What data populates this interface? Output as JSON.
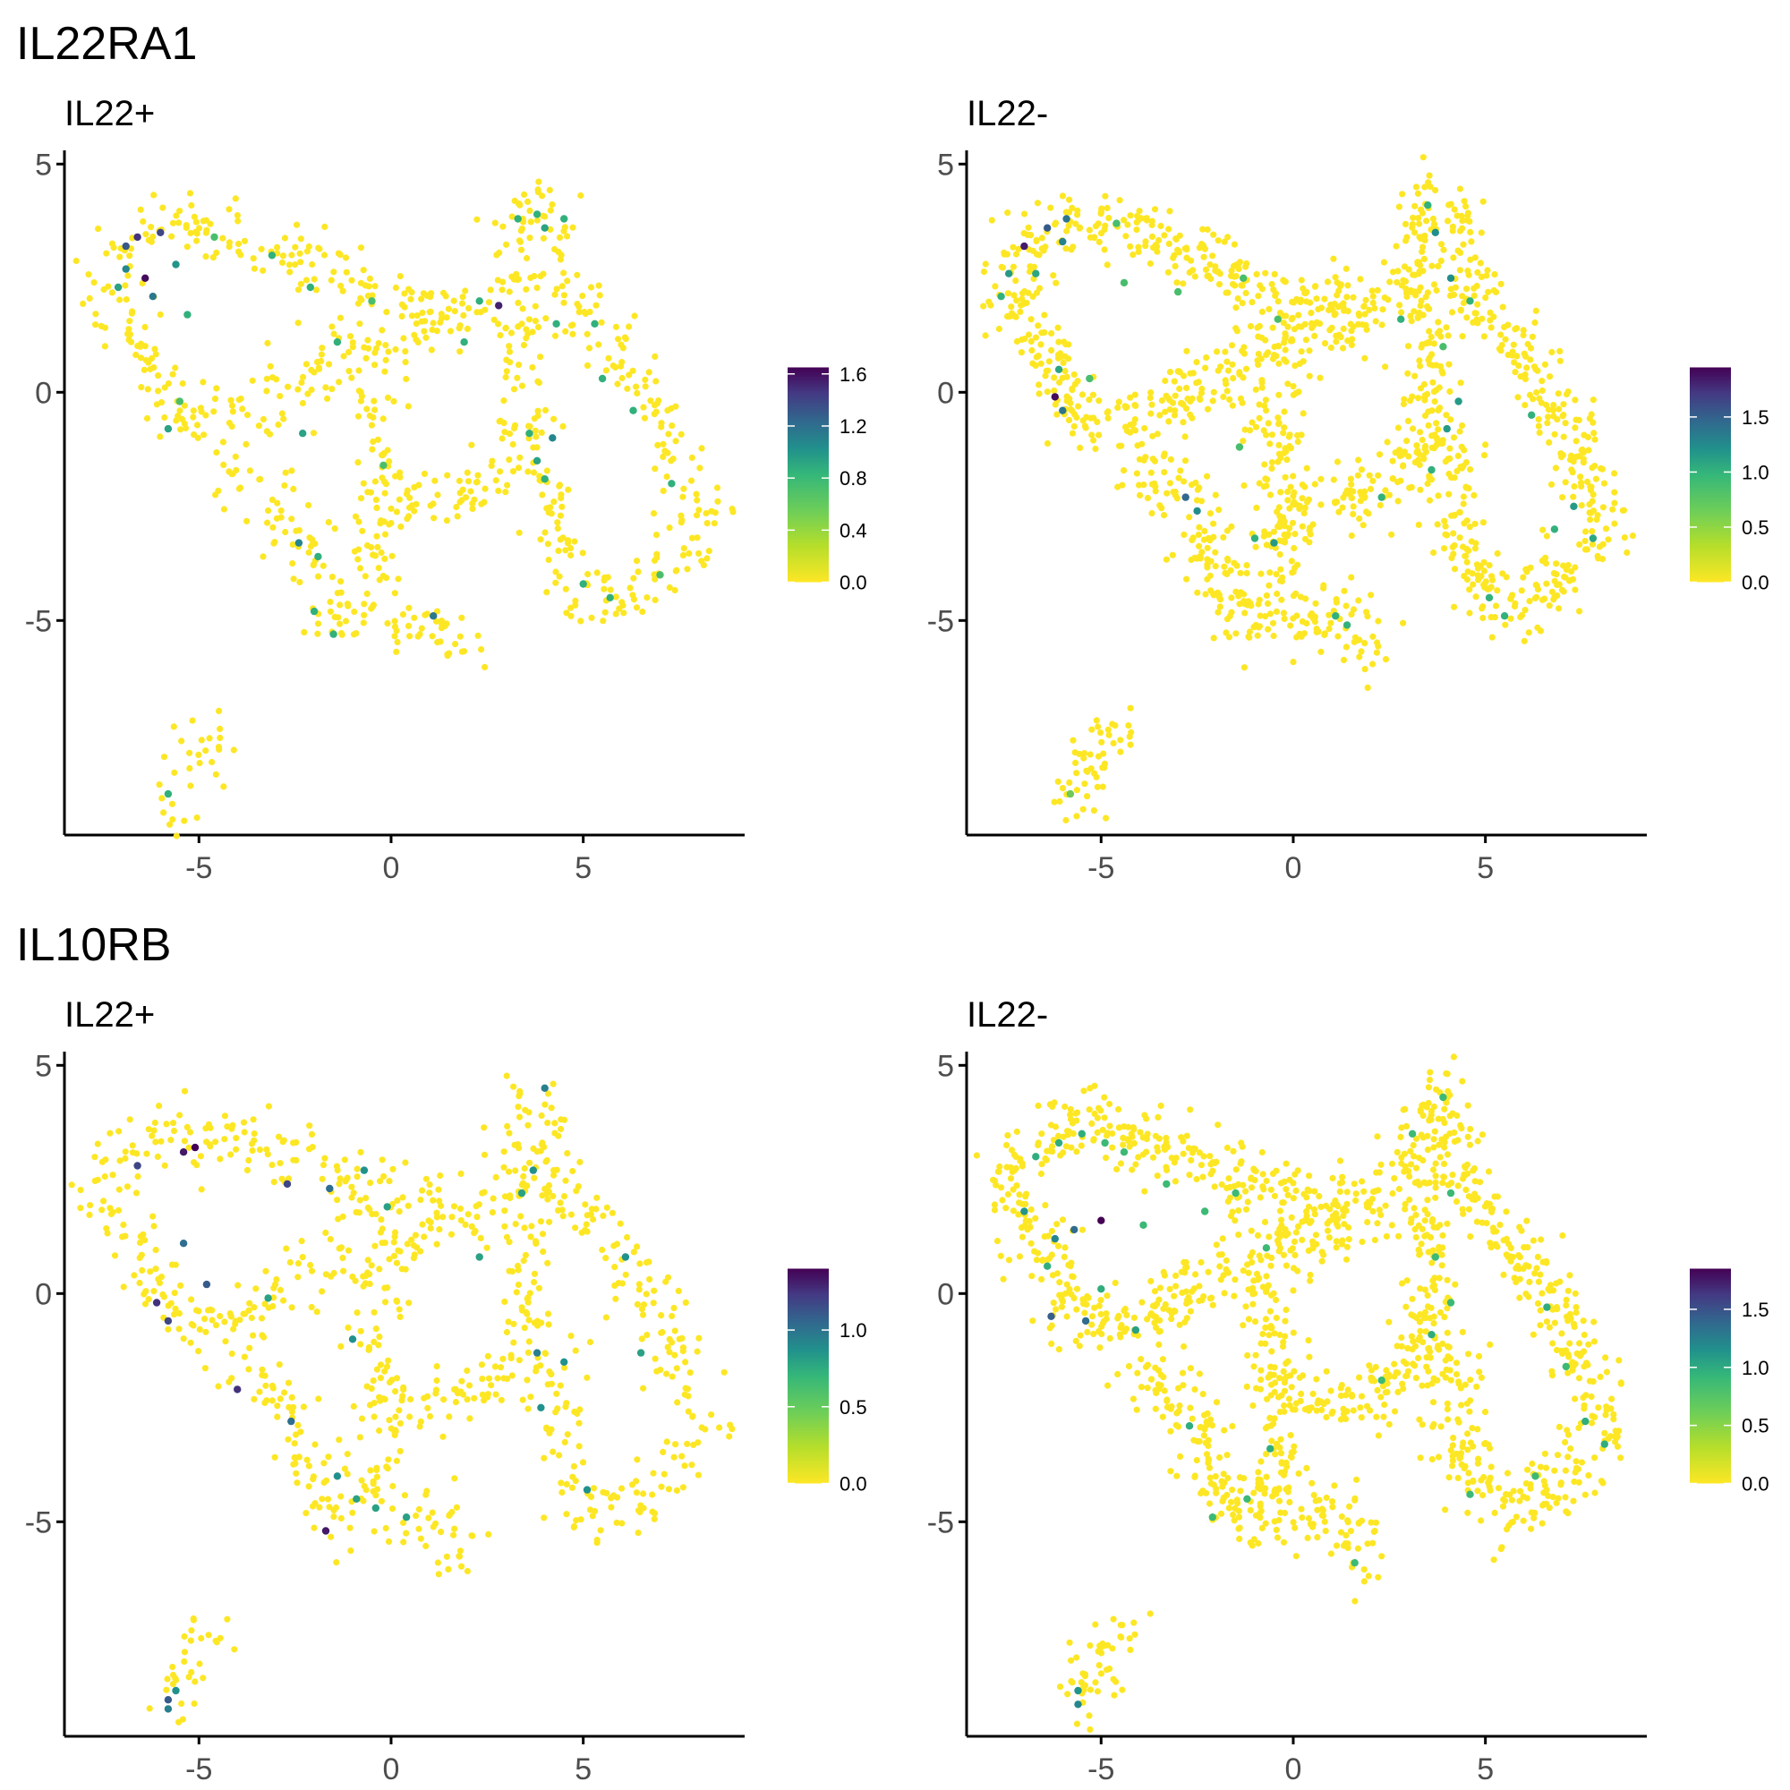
{
  "chart_data": {
    "type": "scatter",
    "xlim": [
      -8.5,
      9.2
    ],
    "ylim": [
      -9.7,
      5.3
    ],
    "x_ticks": [
      "-5",
      "0",
      "5"
    ],
    "y_ticks": [
      "5",
      "0",
      "-5"
    ],
    "x_tick_values": [
      -5,
      0,
      5
    ],
    "y_tick_values": [
      5,
      0,
      -5
    ],
    "color_scale": [
      "#fde725",
      "#b5de2b",
      "#35b779",
      "#21918c",
      "#31688e",
      "#443983",
      "#440154"
    ],
    "rows": [
      {
        "gene": "IL22RA1",
        "panels": [
          {
            "title": "IL22+",
            "density": 1,
            "colorbar": {
              "max": 1.65,
              "labels": [
                "1.6",
                "1.2",
                "0.8",
                "0.4",
                "0.0"
              ],
              "values": [
                1.6,
                1.2,
                0.8,
                0.4,
                0.0
              ]
            },
            "highlights": [
              [
                -6.9,
                3.2,
                1.2
              ],
              [
                -6.6,
                3.4,
                1.4
              ],
              [
                -6.4,
                2.5,
                1.6
              ],
              [
                -6.0,
                3.5,
                1.3
              ],
              [
                -6.2,
                2.1,
                1.0
              ],
              [
                -5.6,
                2.8,
                0.8
              ],
              [
                -6.9,
                2.7,
                0.9
              ],
              [
                -7.1,
                2.3,
                0.7
              ],
              [
                -5.3,
                1.7,
                0.6
              ],
              [
                -3.1,
                3.0,
                0.6
              ],
              [
                -4.6,
                3.4,
                0.5
              ],
              [
                -2.1,
                2.3,
                0.6
              ],
              [
                -0.5,
                2.0,
                0.5
              ],
              [
                3.3,
                3.8,
                0.6
              ],
              [
                4.0,
                3.6,
                0.7
              ],
              [
                3.8,
                3.9,
                0.6
              ],
              [
                2.8,
                1.9,
                1.5
              ],
              [
                2.3,
                2.0,
                0.6
              ],
              [
                4.5,
                3.8,
                0.6
              ],
              [
                4.2,
                -1.0,
                0.9
              ],
              [
                3.8,
                -1.5,
                0.7
              ],
              [
                3.6,
                -0.9,
                0.6
              ],
              [
                4.0,
                -1.9,
                0.6
              ],
              [
                6.3,
                -0.4,
                0.6
              ],
              [
                5.5,
                0.3,
                0.6
              ],
              [
                7.3,
                -2.0,
                0.6
              ],
              [
                7.0,
                -4.0,
                0.5
              ],
              [
                -2.4,
                -3.3,
                0.9
              ],
              [
                -1.9,
                -3.6,
                0.6
              ],
              [
                -1.5,
                -5.3,
                0.6
              ],
              [
                -2.0,
                -4.8,
                0.6
              ],
              [
                1.1,
                -4.9,
                1.0
              ],
              [
                -0.2,
                -1.6,
                0.5
              ],
              [
                -5.8,
                -0.8,
                0.7
              ],
              [
                -5.8,
                -8.8,
                0.6
              ],
              [
                -1.4,
                1.1,
                0.6
              ],
              [
                -2.3,
                -0.9,
                0.7
              ],
              [
                -5.5,
                -0.2,
                0.5
              ],
              [
                4.3,
                1.5,
                0.6
              ],
              [
                5.3,
                1.5,
                0.6
              ],
              [
                5.7,
                -4.5,
                0.6
              ],
              [
                5.0,
                -4.2,
                0.6
              ],
              [
                1.9,
                1.1,
                0.6
              ]
            ]
          },
          {
            "title": "IL22-",
            "density": 1.7,
            "colorbar": {
              "max": 1.95,
              "labels": [
                "1.5",
                "1.0",
                "0.5",
                "0.0"
              ],
              "values": [
                1.5,
                1.0,
                0.5,
                0.0
              ]
            },
            "highlights": [
              [
                -7.0,
                3.2,
                1.8
              ],
              [
                -6.4,
                3.6,
                1.4
              ],
              [
                -5.9,
                3.8,
                1.2
              ],
              [
                -6.0,
                3.3,
                1.1
              ],
              [
                -7.4,
                2.6,
                0.9
              ],
              [
                -6.7,
                2.6,
                0.8
              ],
              [
                -6.2,
                -0.1,
                1.9
              ],
              [
                -6.0,
                -0.4,
                1.2
              ],
              [
                -7.6,
                2.1,
                0.7
              ],
              [
                -6.1,
                0.5,
                0.8
              ],
              [
                -5.3,
                0.3,
                0.6
              ],
              [
                -4.6,
                3.7,
                0.6
              ],
              [
                -4.4,
                2.4,
                0.6
              ],
              [
                -3.0,
                2.2,
                0.6
              ],
              [
                -1.3,
                2.5,
                0.6
              ],
              [
                -0.4,
                1.6,
                0.6
              ],
              [
                -2.8,
                -2.3,
                1.3
              ],
              [
                -2.5,
                -2.6,
                1.0
              ],
              [
                -0.5,
                -3.3,
                0.9
              ],
              [
                -1.0,
                -3.2,
                0.7
              ],
              [
                1.1,
                -4.9,
                0.7
              ],
              [
                1.4,
                -5.1,
                0.7
              ],
              [
                3.5,
                4.1,
                0.7
              ],
              [
                3.7,
                3.5,
                1.0
              ],
              [
                4.1,
                2.5,
                1.0
              ],
              [
                4.6,
                2.0,
                0.7
              ],
              [
                3.9,
                1.0,
                0.6
              ],
              [
                4.0,
                -0.8,
                0.9
              ],
              [
                4.3,
                -0.2,
                0.9
              ],
              [
                3.6,
                -1.7,
                0.7
              ],
              [
                6.2,
                -0.5,
                0.7
              ],
              [
                7.3,
                -2.5,
                0.9
              ],
              [
                7.8,
                -3.2,
                0.8
              ],
              [
                6.8,
                -3.0,
                0.7
              ],
              [
                5.5,
                -4.9,
                0.7
              ],
              [
                5.1,
                -4.5,
                0.7
              ],
              [
                2.3,
                -2.3,
                0.7
              ],
              [
                -5.8,
                -8.8,
                0.5
              ],
              [
                -1.4,
                -1.2,
                0.6
              ],
              [
                2.8,
                1.6,
                0.7
              ]
            ]
          }
        ]
      },
      {
        "gene": "IL10RB",
        "panels": [
          {
            "title": "IL22+",
            "density": 1,
            "colorbar": {
              "max": 1.4,
              "labels": [
                "1.0",
                "0.5",
                "0.0"
              ],
              "values": [
                1.0,
                0.5,
                0.0
              ]
            },
            "highlights": [
              [
                -6.6,
                2.8,
                1.1
              ],
              [
                -5.4,
                3.1,
                1.3
              ],
              [
                -5.1,
                3.2,
                1.4
              ],
              [
                -6.1,
                -0.2,
                1.2
              ],
              [
                -5.8,
                -0.6,
                1.1
              ],
              [
                -4.8,
                0.2,
                1.0
              ],
              [
                -4.0,
                -2.1,
                1.2
              ],
              [
                -5.4,
                1.1,
                0.9
              ],
              [
                -2.7,
                2.4,
                1.1
              ],
              [
                -1.6,
                2.3,
                0.9
              ],
              [
                -0.7,
                2.7,
                0.7
              ],
              [
                -0.1,
                1.9,
                0.6
              ],
              [
                4.0,
                4.5,
                0.8
              ],
              [
                3.7,
                2.7,
                0.7
              ],
              [
                3.4,
                2.2,
                0.6
              ],
              [
                2.3,
                0.8,
                0.6
              ],
              [
                4.5,
                -1.5,
                0.7
              ],
              [
                3.8,
                -1.3,
                0.8
              ],
              [
                3.9,
                -2.5,
                0.7
              ],
              [
                6.5,
                -1.3,
                0.6
              ],
              [
                5.1,
                -4.3,
                0.7
              ],
              [
                6.1,
                0.8,
                0.7
              ],
              [
                -2.6,
                -2.8,
                0.9
              ],
              [
                -1.7,
                -5.2,
                1.3
              ],
              [
                -1.4,
                -4.0,
                0.7
              ],
              [
                -0.9,
                -4.5,
                0.6
              ],
              [
                -0.4,
                -4.7,
                0.6
              ],
              [
                0.4,
                -4.9,
                0.6
              ],
              [
                -5.8,
                -8.9,
                1.0
              ],
              [
                -5.6,
                -8.7,
                0.7
              ],
              [
                -5.8,
                -9.1,
                0.8
              ],
              [
                -3.2,
                -0.1,
                0.6
              ],
              [
                -1.0,
                -1.0,
                0.7
              ]
            ]
          },
          {
            "title": "IL22-",
            "density": 1.7,
            "colorbar": {
              "max": 1.85,
              "labels": [
                "1.5",
                "1.0",
                "0.5",
                "0.0"
              ],
              "values": [
                1.5,
                1.0,
                0.5,
                0.0
              ]
            },
            "highlights": [
              [
                -5.0,
                1.6,
                1.9
              ],
              [
                -6.2,
                1.2,
                1.0
              ],
              [
                -7.0,
                1.8,
                0.9
              ],
              [
                -5.7,
                1.4,
                1.2
              ],
              [
                -6.4,
                0.6,
                0.7
              ],
              [
                -6.7,
                3.0,
                0.7
              ],
              [
                -6.1,
                3.3,
                0.7
              ],
              [
                -5.5,
                3.5,
                0.7
              ],
              [
                -4.9,
                3.3,
                0.6
              ],
              [
                -4.4,
                3.1,
                0.6
              ],
              [
                -3.9,
                1.5,
                0.6
              ],
              [
                -3.3,
                2.4,
                0.6
              ],
              [
                -2.3,
                1.8,
                0.6
              ],
              [
                -1.5,
                2.2,
                0.6
              ],
              [
                -0.7,
                1.0,
                0.6
              ],
              [
                -6.3,
                -0.5,
                1.3
              ],
              [
                -5.4,
                -0.6,
                1.2
              ],
              [
                -4.1,
                -0.8,
                0.8
              ],
              [
                -5.0,
                0.1,
                0.7
              ],
              [
                -2.1,
                -4.9,
                0.6
              ],
              [
                -1.2,
                -4.5,
                0.6
              ],
              [
                -0.6,
                -3.4,
                0.7
              ],
              [
                1.6,
                -5.9,
                0.6
              ],
              [
                3.1,
                3.5,
                0.6
              ],
              [
                3.9,
                4.3,
                0.6
              ],
              [
                4.1,
                2.2,
                0.6
              ],
              [
                3.7,
                0.8,
                0.6
              ],
              [
                3.6,
                -0.9,
                0.7
              ],
              [
                4.1,
                -0.2,
                0.6
              ],
              [
                6.6,
                -0.3,
                0.7
              ],
              [
                7.1,
                -1.6,
                0.6
              ],
              [
                8.1,
                -3.3,
                0.7
              ],
              [
                7.6,
                -2.8,
                0.7
              ],
              [
                6.3,
                -4.0,
                0.6
              ],
              [
                4.6,
                -4.4,
                0.6
              ],
              [
                -5.6,
                -8.7,
                0.9
              ],
              [
                -5.6,
                -9.0,
                1.0
              ],
              [
                -2.7,
                -2.9,
                0.7
              ],
              [
                2.3,
                -1.9,
                0.6
              ]
            ]
          }
        ]
      }
    ]
  }
}
